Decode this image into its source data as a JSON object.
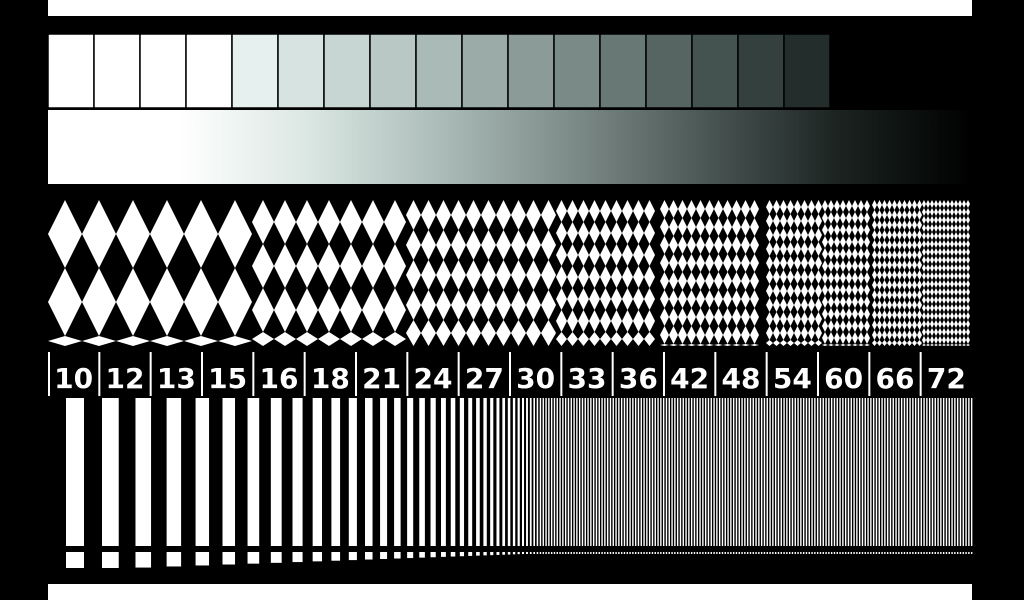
{
  "test_pattern": {
    "grayscale_steps": [
      "#ffffff",
      "#ffffff",
      "#ffffff",
      "#ffffff",
      "#e6f0ef",
      "#d7e3e1",
      "#c8d6d3",
      "#b9c8c5",
      "#aabab7",
      "#9aaba8",
      "#8a9b98",
      "#7a8a87",
      "#687875",
      "#566562",
      "#455350",
      "#33403d",
      "#232d2b"
    ],
    "gradient": {
      "colors": [
        "#ffffff",
        "#ffffff",
        "#d9e6e2",
        "#aabab6",
        "#7c8a87",
        "#4a5654",
        "#1b2321",
        "#000000"
      ]
    },
    "frequency_labels": [
      "10",
      "12",
      "13",
      "15",
      "16",
      "18",
      "21",
      "24",
      "27",
      "30",
      "33",
      "36",
      "42",
      "48",
      "54",
      "60",
      "66",
      "72"
    ],
    "palette": {
      "background": "#000000",
      "foreground": "#ffffff",
      "divider": "#000000"
    }
  }
}
